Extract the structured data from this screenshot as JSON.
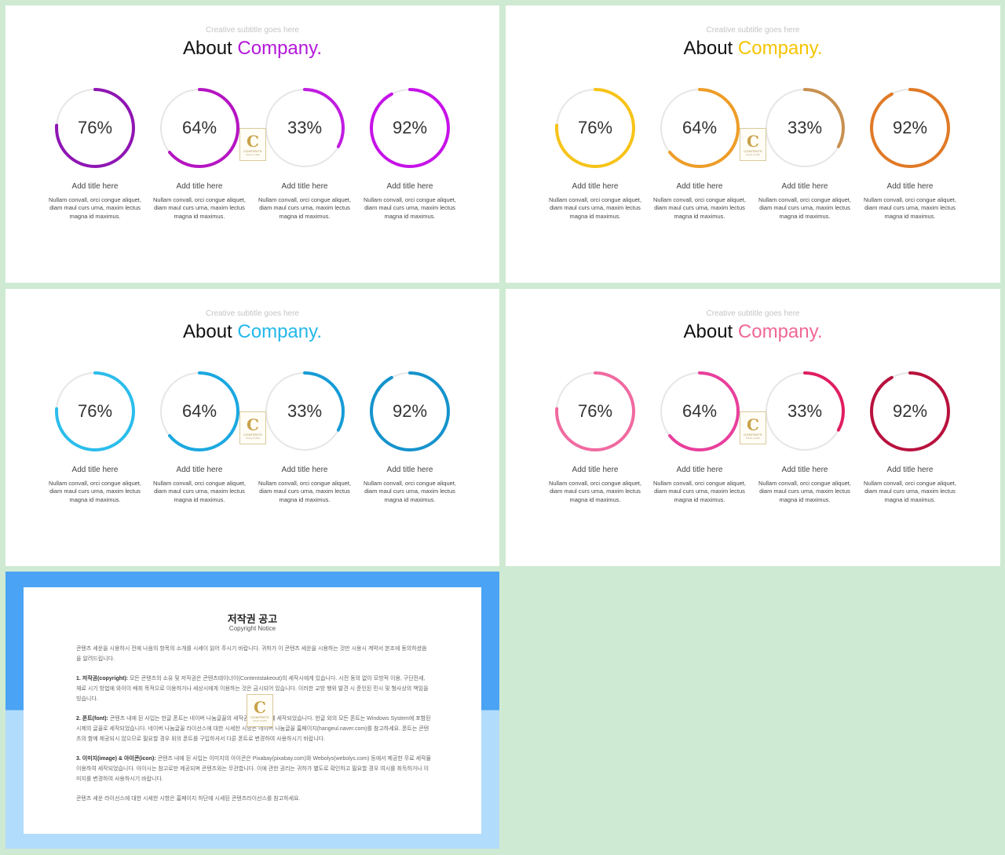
{
  "slides": [
    {
      "subtitle": "Creative subtitle goes here",
      "title_main": "About ",
      "title_accent": "Company.",
      "accent": "#b418d9",
      "items": [
        {
          "value": 76,
          "label": "76%",
          "title": "Add title here",
          "desc": "Nullam convall, orci congue aliquet, diam maul curs urna, maxim lectus magna id maximus.",
          "color": "#8f16b3"
        },
        {
          "value": 64,
          "label": "64%",
          "title": "Add title here",
          "desc": "Nullam convall, orci congue aliquet, diam maul curs urna, maxim lectus magna id maximus.",
          "color": "#b514c2"
        },
        {
          "value": 33,
          "label": "33%",
          "title": "Add title here",
          "desc": "Nullam convall, orci congue aliquet, diam maul curs urna, maxim lectus magna id maximus.",
          "color": "#c01ce0"
        },
        {
          "value": 92,
          "label": "92%",
          "title": "Add title here",
          "desc": "Nullam convall, orci congue aliquet, diam maul curs urna, maxim lectus magna id maximus.",
          "color": "#c612e8"
        }
      ]
    },
    {
      "subtitle": "Creative subtitle goes here",
      "title_main": "About ",
      "title_accent": "Company.",
      "accent": "#f5c400",
      "items": [
        {
          "value": 76,
          "label": "76%",
          "title": "Add title here",
          "desc": "Nullam convall, orci congue aliquet, diam maul curs urna, maxim lectus magna id maximus.",
          "color": "#f6c318"
        },
        {
          "value": 64,
          "label": "64%",
          "title": "Add title here",
          "desc": "Nullam convall, orci congue aliquet, diam maul curs urna, maxim lectus magna id maximus.",
          "color": "#ee9d28"
        },
        {
          "value": 33,
          "label": "33%",
          "title": "Add title here",
          "desc": "Nullam convall, orci congue aliquet, diam maul curs urna, maxim lectus magna id maximus.",
          "color": "#c89050"
        },
        {
          "value": 92,
          "label": "92%",
          "title": "Add title here",
          "desc": "Nullam convall, orci congue aliquet, diam maul curs urna, maxim lectus magna id maximus.",
          "color": "#e07a26"
        }
      ]
    },
    {
      "subtitle": "Creative subtitle goes here",
      "title_main": "About ",
      "title_accent": "Company.",
      "accent": "#23b8ea",
      "items": [
        {
          "value": 76,
          "label": "76%",
          "title": "Add title here",
          "desc": "Nullam convall, orci congue aliquet, diam maul curs urna, maxim lectus magna id maximus.",
          "color": "#2bbdeb"
        },
        {
          "value": 64,
          "label": "64%",
          "title": "Add title here",
          "desc": "Nullam convall, orci congue aliquet, diam maul curs urna, maxim lectus magna id maximus.",
          "color": "#1ba8e0"
        },
        {
          "value": 33,
          "label": "33%",
          "title": "Add title here",
          "desc": "Nullam convall, orci congue aliquet, diam maul curs urna, maxim lectus magna id maximus.",
          "color": "#169cd6"
        },
        {
          "value": 92,
          "label": "92%",
          "title": "Add title here",
          "desc": "Nullam convall, orci congue aliquet, diam maul curs urna, maxim lectus magna id maximus.",
          "color": "#1593cc"
        }
      ]
    },
    {
      "subtitle": "Creative subtitle goes here",
      "title_main": "About ",
      "title_accent": "Company.",
      "accent": "#f06896",
      "items": [
        {
          "value": 76,
          "label": "76%",
          "title": "Add title here",
          "desc": "Nullam convall, orci congue aliquet, diam maul curs urna, maxim lectus magna id maximus.",
          "color": "#f06aa0"
        },
        {
          "value": 64,
          "label": "64%",
          "title": "Add title here",
          "desc": "Nullam convall, orci congue aliquet, diam maul curs urna, maxim lectus magna id maximus.",
          "color": "#e83f9c"
        },
        {
          "value": 33,
          "label": "33%",
          "title": "Add title here",
          "desc": "Nullam convall, orci congue aliquet, diam maul curs urna, maxim lectus magna id maximus.",
          "color": "#e01e62"
        },
        {
          "value": 92,
          "label": "92%",
          "title": "Add title here",
          "desc": "Nullam convall, orci congue aliquet, diam maul curs urna, maxim lectus magna id maximus.",
          "color": "#b8123e"
        }
      ]
    }
  ],
  "track_color": "#e6e6e6",
  "logo": {
    "letter": "C",
    "name": "CONTENTS",
    "tag": "MAUL CURS",
    "icon": "contents-logo-icon"
  },
  "copyright": {
    "title": "저작권 공고",
    "subtitle": "Copyright Notice",
    "intro": "콘텐츠 세운을 시용하시 전에 나음의 항목의 소개를 시세이 읽어 주시기 바랍니다. 귀하가 이 콘텐츠 세운을 시용하는 것만 시용시 계약서 본조에 동의하셨음을 알려드립니다.",
    "p1_head": "1. 저작권(copyright):",
    "p1_body": " 모든 콘텐츠의 소유 및 저작권은 콘텐츠테이너이(Contentstakeout)의 세작시에게 있습니다. 시전 동의 없이 모방적 이용, 구단전세, 재료 시기 방법에 와이이 배취 목적으로 이용하거나 세상시에게 이용하는 것은 금시되어 있습니다. 이러한 교방 행위 발견 시 준인된 민시 및 형사상의 책임을 빙습니다.",
    "p2_head": "2. 폰트(font):",
    "p2_body": " 콘텐츠 내에 된 사입는 한글 폰트는 네이버 나눔글꼴의 세작권은 네이버에 세작되었습니다. 한글 외의 모든 폰트는 Windows System에 포함된 시제의 글꼴로 세작되었습니다. 네이버 나눔글꼴 라이선스에 대한 시세한 시항은 네이버 나눔글꼴 홈페이지(hangeul.naver.com)를 참고하세요. 폰트는 콘텐츠의 함께 제공되시 않으므로 필요할 경우 위의 폰트를 구입하셔서 다른 폰트로 변경하여 사용하시기 바랍니다.",
    "p3_head": "3. 이미지(image) & 아이콘(icon):",
    "p3_body": " 콘텐츠 내에 된 사입는 이미지의 아이콘은 Pixabay(pixabay.com)와 Webolys(webolys.com) 등에서 제공한 무료 세작물 이용하여 세작되었습니다. 아이시는 참고로만 제공되며 콘텐츠와는 무관합니다. 이에 관한 권리는 귀하가 별도로 확인하고 필요할 경우 여시를 취득하거나 이미지를 변경하여 사용하시기 바랍니다.",
    "outro": "콘텐츠 세운 라이선스에 대한 시세한 시항은 홈페이지 하단에 시세된 콘텐츠라이선스를 참고하세요."
  }
}
